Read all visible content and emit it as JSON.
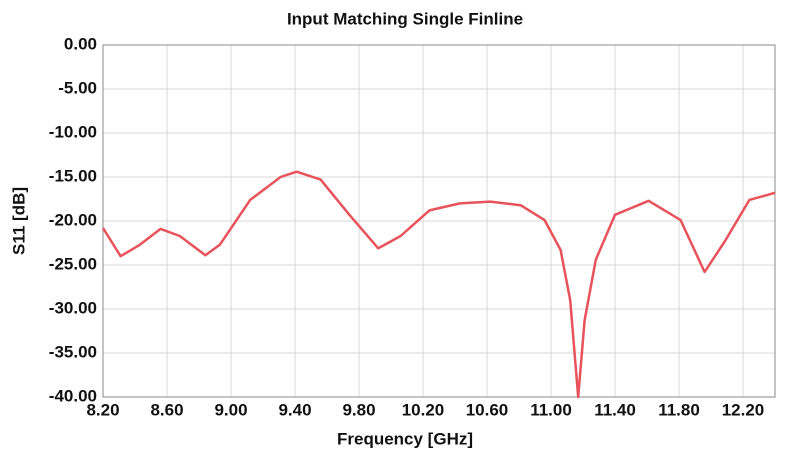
{
  "chart_data": {
    "type": "line",
    "title": "Input Matching Single Finline",
    "xlabel": "Frequency [GHz]",
    "ylabel": "S11 [dB]",
    "xlim": [
      8.2,
      12.4
    ],
    "ylim": [
      -40,
      0
    ],
    "xticks": [
      {
        "value": 8.2,
        "label": "8.20"
      },
      {
        "value": 8.6,
        "label": "8.60"
      },
      {
        "value": 9.0,
        "label": "9.00"
      },
      {
        "value": 9.4,
        "label": "9.40"
      },
      {
        "value": 9.8,
        "label": "9.80"
      },
      {
        "value": 10.2,
        "label": "10.20"
      },
      {
        "value": 10.6,
        "label": "10.60"
      },
      {
        "value": 11.0,
        "label": "11.00"
      },
      {
        "value": 11.4,
        "label": "11.40"
      },
      {
        "value": 11.8,
        "label": "11.80"
      },
      {
        "value": 12.2,
        "label": "12.20"
      }
    ],
    "yticks": [
      {
        "value": 0,
        "label": "0.00"
      },
      {
        "value": -5,
        "label": "-5.00"
      },
      {
        "value": -10,
        "label": "-10.00"
      },
      {
        "value": -15,
        "label": "-15.00"
      },
      {
        "value": -20,
        "label": "-20.00"
      },
      {
        "value": -25,
        "label": "-25.00"
      },
      {
        "value": -30,
        "label": "-30.00"
      },
      {
        "value": -35,
        "label": "-35.00"
      },
      {
        "value": -40,
        "label": "-40.00"
      }
    ],
    "grid": true,
    "x": [
      8.2,
      8.31,
      8.43,
      8.56,
      8.68,
      8.84,
      8.93,
      9.12,
      9.31,
      9.41,
      9.56,
      9.74,
      9.92,
      10.06,
      10.24,
      10.43,
      10.62,
      10.81,
      10.96,
      11.06,
      11.12,
      11.17,
      11.21,
      11.28,
      11.4,
      11.61,
      11.81,
      11.96,
      12.09,
      12.24,
      12.4
    ],
    "series": [
      {
        "color": "#e8525a",
        "values": [
          -20.8,
          -24.0,
          -22.7,
          -20.9,
          -21.7,
          -23.9,
          -22.7,
          -17.6,
          -15.0,
          -14.4,
          -15.3,
          -19.3,
          -23.1,
          -21.7,
          -18.8,
          -18.0,
          -17.8,
          -18.2,
          -19.9,
          -23.3,
          -29.0,
          -40,
          -31.3,
          -24.4,
          -19.3,
          -17.7,
          -19.9,
          -25.8,
          -22.2,
          -17.6,
          -16.8
        ]
      }
    ]
  }
}
